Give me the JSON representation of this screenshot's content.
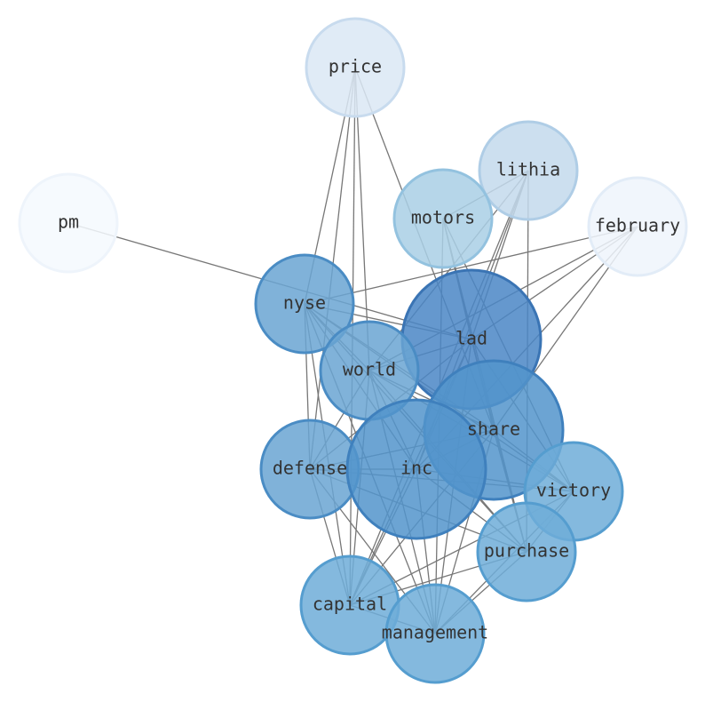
{
  "nodes": [
    {
      "label": "price"
    },
    {
      "label": "lithia"
    },
    {
      "label": "pm"
    },
    {
      "label": "motors"
    },
    {
      "label": "february"
    },
    {
      "label": "nyse"
    },
    {
      "label": "lad"
    },
    {
      "label": "world"
    },
    {
      "label": "share"
    },
    {
      "label": "defense"
    },
    {
      "label": "inc"
    },
    {
      "label": "victory"
    },
    {
      "label": "purchase"
    },
    {
      "label": "capital"
    },
    {
      "label": "management"
    }
  ]
}
